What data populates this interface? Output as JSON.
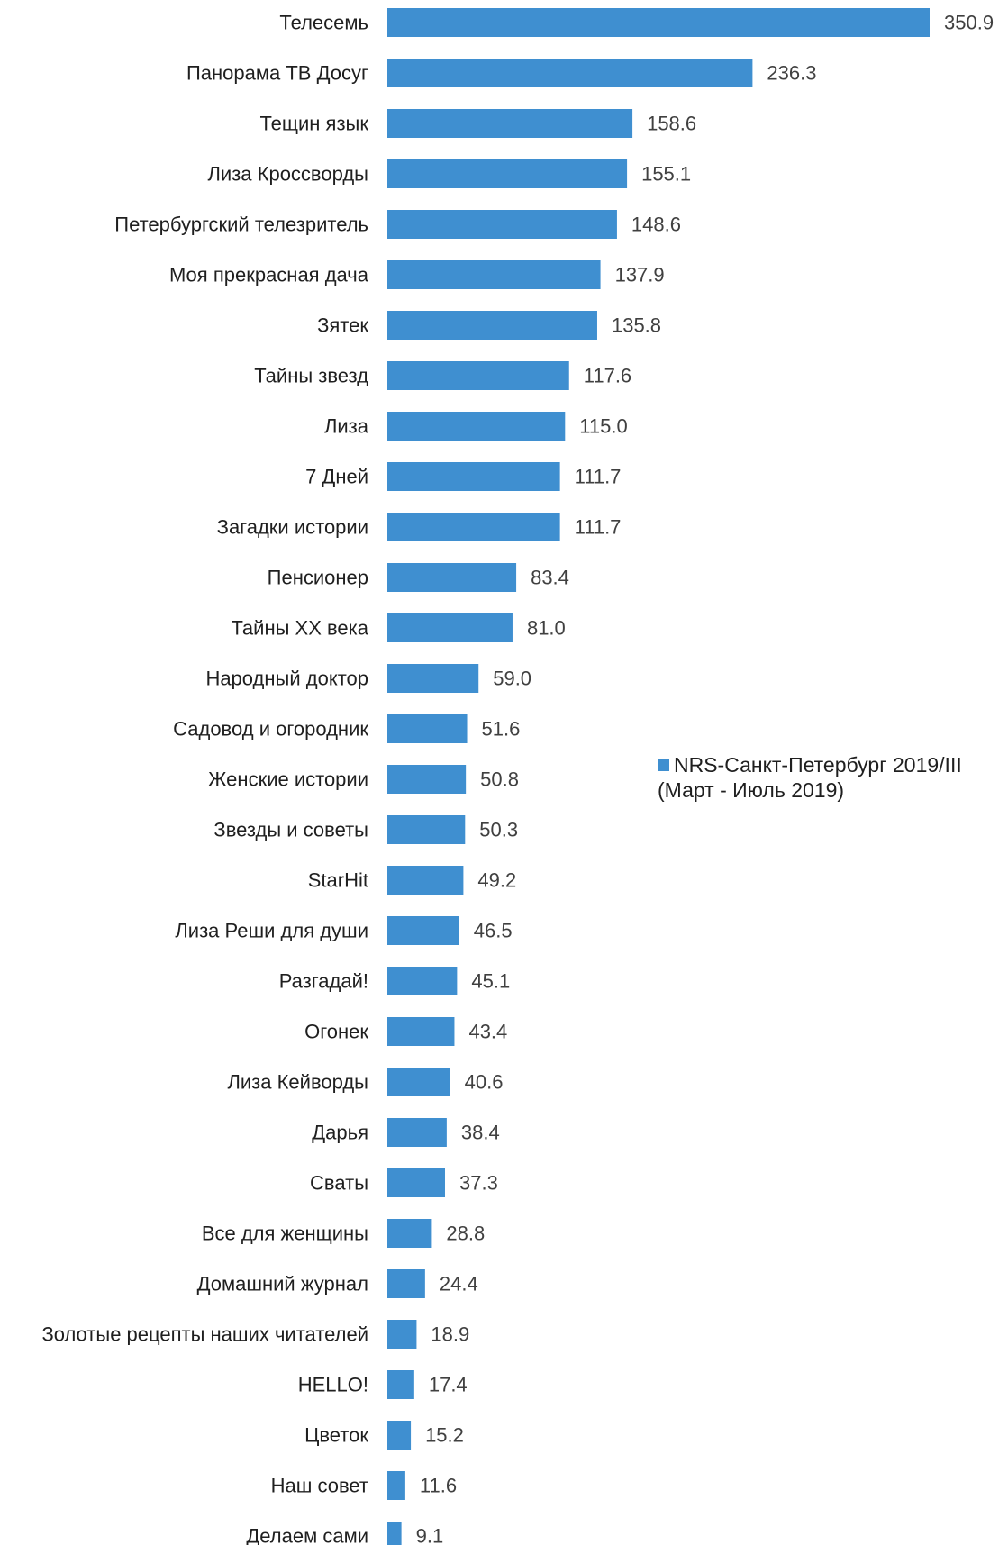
{
  "chart_data": {
    "type": "bar",
    "orientation": "horizontal",
    "categories": [
      "Телесемь",
      "Панорама ТВ Досуг",
      "Тещин язык",
      "Лиза Кроссворды",
      "Петербургский телезритель",
      "Моя прекрасная дача",
      "Зятек",
      "Тайны звезд",
      "Лиза",
      "7 Дней",
      "Загадки истории",
      "Пенсионер",
      "Тайны XX века",
      "Народный доктор",
      "Садовод и огородник",
      "Женские истории",
      "Звезды и советы",
      "StarHit",
      "Лиза Реши для души",
      "Разгадай!",
      "Огонек",
      "Лиза Кейворды",
      "Дарья",
      "Сваты",
      "Все для женщины",
      "Домашний журнал",
      "Золотые рецепты наших читателей",
      "HELLO!",
      "Цветок",
      "Наш совет",
      "Делаем сами"
    ],
    "series": [
      {
        "name": "NRS-Санкт-Петербург 2019/III (Март - Июль 2019)",
        "color": "#3f8fd0",
        "values": [
          350.9,
          236.3,
          158.6,
          155.1,
          148.6,
          137.9,
          135.8,
          117.6,
          115.0,
          111.7,
          111.7,
          83.4,
          81.0,
          59.0,
          51.6,
          50.8,
          50.3,
          49.2,
          46.5,
          45.1,
          43.4,
          40.6,
          38.4,
          37.3,
          28.8,
          24.4,
          18.9,
          17.4,
          15.2,
          11.6,
          9.1
        ],
        "labels": [
          "350.9",
          "236.3",
          "158.6",
          "155.1",
          "148.6",
          "137.9",
          "135.8",
          "117.6",
          "115.0",
          "111.7",
          "111.7",
          "83.4",
          "81.0",
          "59.0",
          "51.6",
          "50.8",
          "50.3",
          "49.2",
          "46.5",
          "45.1",
          "43.4",
          "40.6",
          "38.4",
          "37.3",
          "28.8",
          "24.4",
          "18.9",
          "17.4",
          "15.2",
          "11.6",
          "9.1"
        ]
      }
    ],
    "xlim": [
      0,
      350.9
    ],
    "grid": false,
    "legend": {
      "placement": "right",
      "line1": "NRS-Санкт-Петербург 2019/III",
      "line2": "(Март - Июль 2019)"
    }
  }
}
